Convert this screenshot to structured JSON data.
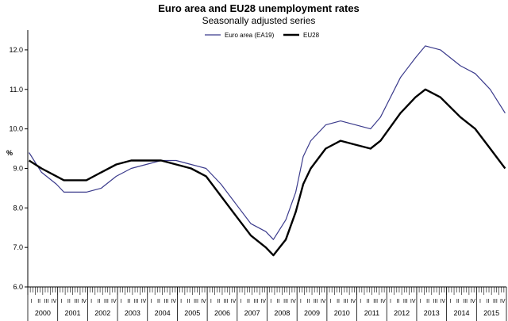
{
  "chart_data": {
    "type": "line",
    "title": "Euro area and EU28 unemployment rates",
    "subtitle": "Seasonally adjusted series",
    "ylabel": "%",
    "ylim": [
      6.0,
      12.5
    ],
    "yticks": [
      "6.0",
      "7.0",
      "8.0",
      "9.0",
      "10.0",
      "11.0",
      "12.0"
    ],
    "legend_position": "top-center",
    "grid": false,
    "years": [
      "2000",
      "2001",
      "2002",
      "2003",
      "2004",
      "2005",
      "2006",
      "2007",
      "2008",
      "2009",
      "2010",
      "2011",
      "2012",
      "2013",
      "2014",
      "2015"
    ],
    "quarters": [
      "I",
      "II",
      "III",
      "IV"
    ],
    "x_start": "2000-01",
    "x_end": "2015-12",
    "series": [
      {
        "name": "Euro area (EA19)",
        "color": "#3b3b8c",
        "points": [
          [
            "2000-01",
            9.4
          ],
          [
            "2000-06",
            8.9
          ],
          [
            "2000-12",
            8.6
          ],
          [
            "2001-03",
            8.4
          ],
          [
            "2001-12",
            8.4
          ],
          [
            "2002-06",
            8.5
          ],
          [
            "2002-12",
            8.8
          ],
          [
            "2003-06",
            9.0
          ],
          [
            "2003-12",
            9.1
          ],
          [
            "2004-06",
            9.2
          ],
          [
            "2004-12",
            9.2
          ],
          [
            "2005-06",
            9.1
          ],
          [
            "2005-12",
            9.0
          ],
          [
            "2006-06",
            8.6
          ],
          [
            "2006-12",
            8.1
          ],
          [
            "2007-06",
            7.6
          ],
          [
            "2007-12",
            7.4
          ],
          [
            "2008-03",
            7.2
          ],
          [
            "2008-08",
            7.7
          ],
          [
            "2008-12",
            8.4
          ],
          [
            "2009-03",
            9.3
          ],
          [
            "2009-06",
            9.7
          ],
          [
            "2009-12",
            10.1
          ],
          [
            "2010-06",
            10.2
          ],
          [
            "2010-12",
            10.1
          ],
          [
            "2011-06",
            10.0
          ],
          [
            "2011-10",
            10.3
          ],
          [
            "2012-06",
            11.3
          ],
          [
            "2012-12",
            11.8
          ],
          [
            "2013-04",
            12.1
          ],
          [
            "2013-10",
            12.0
          ],
          [
            "2014-06",
            11.6
          ],
          [
            "2014-12",
            11.4
          ],
          [
            "2015-06",
            11.0
          ],
          [
            "2015-12",
            10.4
          ]
        ]
      },
      {
        "name": "EU28",
        "color": "#000000",
        "points": [
          [
            "2000-01",
            9.2
          ],
          [
            "2000-06",
            9.0
          ],
          [
            "2000-12",
            8.8
          ],
          [
            "2001-03",
            8.7
          ],
          [
            "2001-12",
            8.7
          ],
          [
            "2002-06",
            8.9
          ],
          [
            "2002-12",
            9.1
          ],
          [
            "2003-06",
            9.2
          ],
          [
            "2003-12",
            9.2
          ],
          [
            "2004-06",
            9.2
          ],
          [
            "2004-12",
            9.1
          ],
          [
            "2005-06",
            9.0
          ],
          [
            "2005-12",
            8.8
          ],
          [
            "2006-06",
            8.3
          ],
          [
            "2006-12",
            7.8
          ],
          [
            "2007-06",
            7.3
          ],
          [
            "2007-12",
            7.0
          ],
          [
            "2008-03",
            6.8
          ],
          [
            "2008-08",
            7.2
          ],
          [
            "2008-12",
            7.9
          ],
          [
            "2009-03",
            8.6
          ],
          [
            "2009-06",
            9.0
          ],
          [
            "2009-12",
            9.5
          ],
          [
            "2010-06",
            9.7
          ],
          [
            "2010-12",
            9.6
          ],
          [
            "2011-06",
            9.5
          ],
          [
            "2011-10",
            9.7
          ],
          [
            "2012-06",
            10.4
          ],
          [
            "2012-12",
            10.8
          ],
          [
            "2013-04",
            11.0
          ],
          [
            "2013-10",
            10.8
          ],
          [
            "2014-06",
            10.3
          ],
          [
            "2014-12",
            10.0
          ],
          [
            "2015-06",
            9.5
          ],
          [
            "2015-12",
            9.0
          ]
        ]
      }
    ]
  }
}
